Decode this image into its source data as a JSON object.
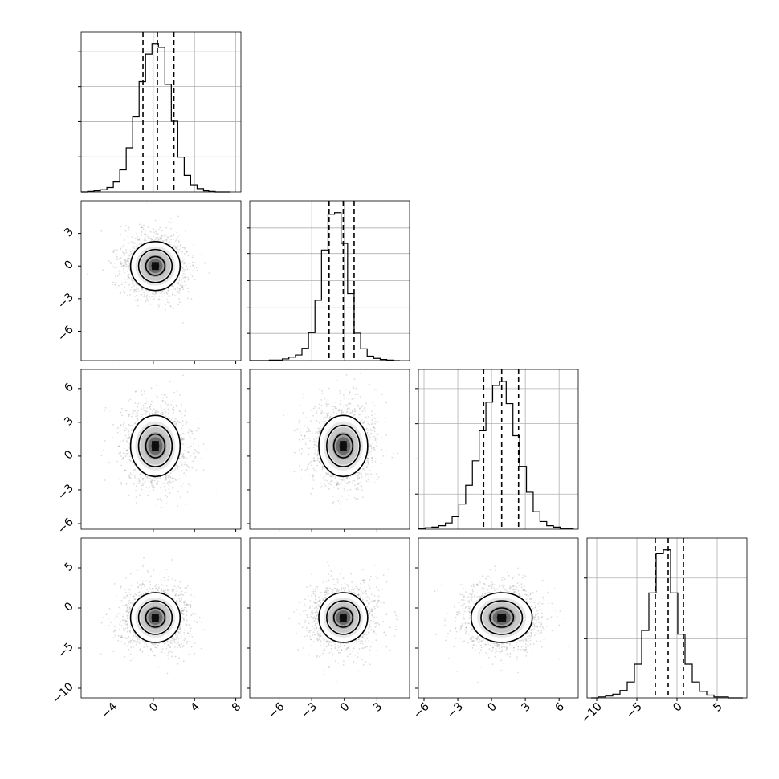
{
  "chart_data": {
    "type": "corner",
    "parameters": 4,
    "grid": true,
    "axis_labels": [
      "",
      "",
      "",
      ""
    ],
    "ranges": [
      [
        -7,
        8.5
      ],
      [
        -8.7,
        6
      ],
      [
        -6.5,
        7.7
      ],
      [
        -11.2,
        8.7
      ]
    ],
    "ticks": [
      {
        "values": [
          -4,
          0,
          4,
          8
        ],
        "labels": [
          "−4",
          "0",
          "4",
          "8"
        ]
      },
      {
        "values": [
          -6,
          -3,
          0,
          3
        ],
        "labels": [
          "−6",
          "−3",
          "0",
          "3"
        ]
      },
      {
        "values": [
          -6,
          -3,
          0,
          3,
          6
        ],
        "labels": [
          "−6",
          "−3",
          "0",
          "3",
          "6"
        ]
      },
      {
        "values": [
          -10,
          -5,
          0,
          5
        ],
        "labels": [
          "−10",
          "−5",
          "0",
          "5"
        ]
      }
    ],
    "quantiles": [
      [
        -1.0,
        0.4,
        2.0
      ],
      [
        -1.4,
        -0.1,
        0.9
      ],
      [
        -0.7,
        0.9,
        2.4
      ],
      [
        -2.7,
        -1.1,
        0.8
      ]
    ],
    "histograms": [
      {
        "bins": [
          -7.0,
          -6.375,
          -5.75,
          -5.125,
          -4.5,
          -3.875,
          -3.25,
          -2.625,
          -2.0,
          -1.375,
          -0.75,
          -0.125,
          0.5,
          1.125,
          1.75,
          2.375,
          3.0,
          3.625,
          4.25,
          4.875,
          5.375,
          6.0,
          6.5,
          7.0,
          7.5
        ],
        "counts": [
          0,
          1,
          2,
          4,
          8,
          18,
          40,
          80,
          136,
          200,
          250,
          268,
          262,
          195,
          128,
          63,
          30,
          13,
          6,
          2,
          1,
          0,
          0,
          0
        ]
      },
      {
        "bins": [
          -8.7,
          -8.1,
          -7.5,
          -6.9,
          -6.3,
          -5.7,
          -5.1,
          -4.5,
          -3.9,
          -3.3,
          -2.7,
          -2.1,
          -1.5,
          -0.9,
          -0.3,
          0.3,
          0.9,
          1.5,
          2.1,
          2.7,
          3.3,
          3.9,
          4.5,
          5.1
        ],
        "counts": [
          0,
          0,
          0,
          1,
          1,
          3,
          6,
          10,
          22,
          50,
          108,
          198,
          262,
          265,
          210,
          120,
          49,
          21,
          8,
          4,
          2,
          1,
          0
        ]
      },
      {
        "bins": [
          -6.5,
          -5.9,
          -5.3,
          -4.7,
          -4.1,
          -3.5,
          -2.9,
          -2.3,
          -1.7,
          -1.1,
          -0.5,
          0.1,
          0.7,
          1.3,
          1.9,
          2.5,
          3.1,
          3.7,
          4.3,
          4.9,
          5.5,
          6.1,
          6.7,
          7.3
        ],
        "counts": [
          1,
          2,
          3,
          5,
          9,
          18,
          36,
          63,
          98,
          141,
          182,
          206,
          212,
          180,
          134,
          90,
          53,
          25,
          11,
          5,
          3,
          1,
          1
        ]
      },
      {
        "bins": [
          -10.7,
          -9.8,
          -8.9,
          -8.0,
          -7.1,
          -6.2,
          -5.3,
          -4.4,
          -3.5,
          -2.6,
          -1.7,
          -0.8,
          0.1,
          1.0,
          1.9,
          2.8,
          3.7,
          4.6,
          5.5,
          6.4,
          7.3,
          8.2
        ],
        "counts": [
          0,
          1,
          2,
          4,
          8,
          17,
          36,
          72,
          112,
          154,
          158,
          112,
          68,
          36,
          17,
          7,
          3,
          1,
          1,
          0,
          0
        ]
      }
    ],
    "pairs": [
      {
        "row": 1,
        "col": 0,
        "x_center": 0.2,
        "y_center": 0.0,
        "x_sd": 1.55,
        "y_sd": 1.45
      },
      {
        "row": 2,
        "col": 0,
        "x_center": 0.2,
        "y_center": 0.9,
        "x_sd": 1.55,
        "y_sd": 1.75
      },
      {
        "row": 2,
        "col": 1,
        "x_center": -0.1,
        "y_center": 0.9,
        "x_sd": 1.45,
        "y_sd": 1.75
      },
      {
        "row": 3,
        "col": 0,
        "x_center": 0.2,
        "y_center": -1.2,
        "x_sd": 1.55,
        "y_sd": 2.0
      },
      {
        "row": 3,
        "col": 1,
        "x_center": -0.1,
        "y_center": -1.2,
        "x_sd": 1.45,
        "y_sd": 2.0
      },
      {
        "row": 3,
        "col": 2,
        "x_center": 0.9,
        "y_center": -1.2,
        "x_sd": 1.75,
        "y_sd": 2.0
      }
    ]
  }
}
